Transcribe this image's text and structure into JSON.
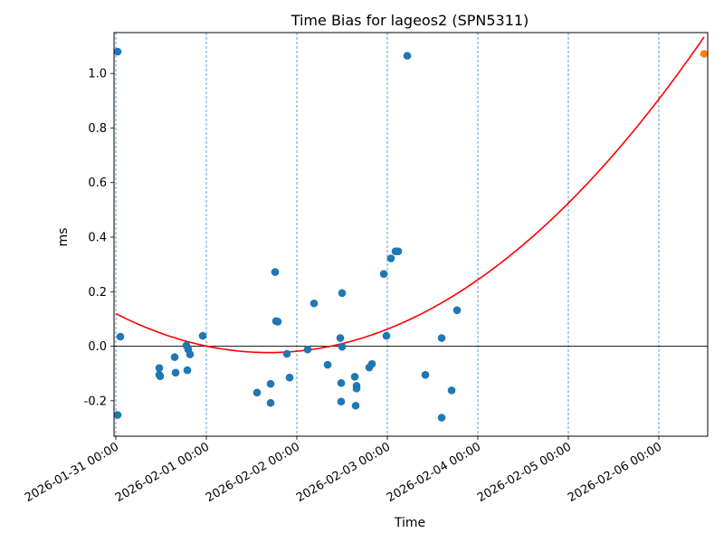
{
  "chart_data": {
    "type": "scatter",
    "title": "Time Bias for lageos2 (SPN5311)",
    "xlabel": "Time",
    "ylabel": "ms",
    "x_start": "2026-01-31 00:00",
    "xlim_days": [
      -0.02,
      6.54
    ],
    "ylim": [
      -0.33,
      1.15
    ],
    "x_ticks": [
      {
        "day": 0,
        "label": "2026-01-31 00:00"
      },
      {
        "day": 1,
        "label": "2026-02-01 00:00"
      },
      {
        "day": 2,
        "label": "2026-02-02 00:00"
      },
      {
        "day": 3,
        "label": "2026-02-03 00:00"
      },
      {
        "day": 4,
        "label": "2026-02-04 00:00"
      },
      {
        "day": 5,
        "label": "2026-02-05 00:00"
      },
      {
        "day": 6,
        "label": "2026-02-06 00:00"
      }
    ],
    "y_ticks": [
      -0.2,
      0.0,
      0.2,
      0.4,
      0.6,
      0.8,
      1.0
    ],
    "day_gridlines": [
      0,
      1,
      2,
      3,
      4,
      5,
      6
    ],
    "zero_line": true,
    "points_color": "#1f77b4",
    "points": [
      [
        0.02,
        1.08
      ],
      [
        0.05,
        0.035
      ],
      [
        0.02,
        -0.252
      ],
      [
        0.48,
        -0.08
      ],
      [
        0.48,
        -0.105
      ],
      [
        0.49,
        -0.11
      ],
      [
        0.65,
        -0.04
      ],
      [
        0.66,
        -0.097
      ],
      [
        0.78,
        0.003
      ],
      [
        0.8,
        -0.012
      ],
      [
        0.82,
        -0.03
      ],
      [
        0.79,
        -0.088
      ],
      [
        0.96,
        0.038
      ],
      [
        1.56,
        -0.17
      ],
      [
        1.71,
        -0.138
      ],
      [
        1.71,
        -0.208
      ],
      [
        1.76,
        0.272
      ],
      [
        1.77,
        0.092
      ],
      [
        1.79,
        0.09
      ],
      [
        1.89,
        -0.028
      ],
      [
        1.92,
        -0.115
      ],
      [
        2.12,
        -0.012
      ],
      [
        2.19,
        0.157
      ],
      [
        2.34,
        -0.068
      ],
      [
        2.48,
        0.03
      ],
      [
        2.5,
        0.195
      ],
      [
        2.5,
        -0.002
      ],
      [
        2.49,
        -0.135
      ],
      [
        2.49,
        -0.203
      ],
      [
        2.64,
        -0.112
      ],
      [
        2.66,
        -0.145
      ],
      [
        2.66,
        -0.155
      ],
      [
        2.65,
        -0.218
      ],
      [
        2.8,
        -0.078
      ],
      [
        2.83,
        -0.065
      ],
      [
        2.96,
        0.265
      ],
      [
        2.99,
        0.038
      ],
      [
        3.04,
        0.322
      ],
      [
        3.09,
        0.348
      ],
      [
        3.12,
        0.348
      ],
      [
        3.22,
        1.065
      ],
      [
        3.42,
        -0.105
      ],
      [
        3.6,
        0.03
      ],
      [
        3.6,
        -0.262
      ],
      [
        3.71,
        -0.162
      ],
      [
        3.77,
        0.132
      ]
    ],
    "highlight_point": {
      "day": 6.5,
      "value": 1.072,
      "color": "#ff7f0e"
    },
    "fit_curve": {
      "color": "#ff0000",
      "quadratic_coeffs": [
        0.11943,
        -0.16898,
        0.050005
      ],
      "x_range_days": [
        0,
        6.5
      ]
    }
  }
}
